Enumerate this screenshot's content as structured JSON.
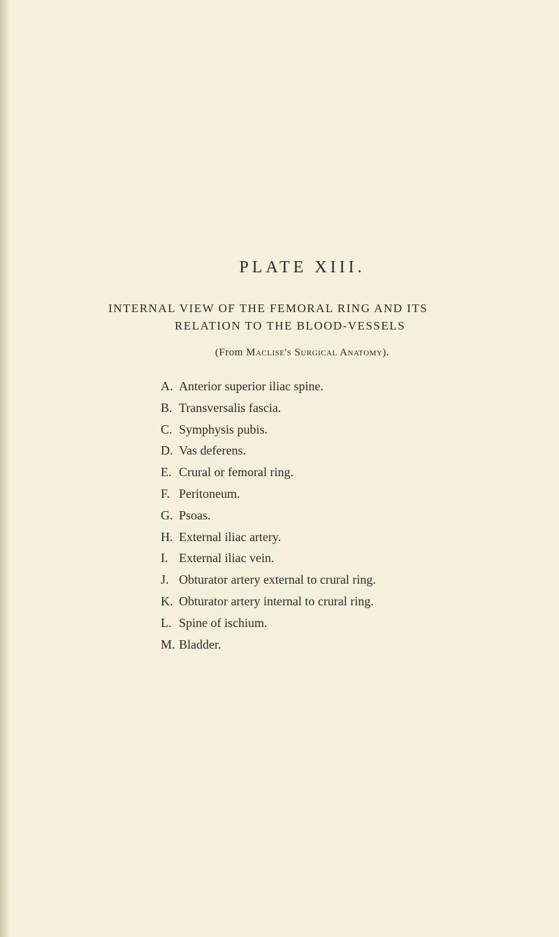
{
  "plate_title": "PLATE XIII.",
  "heading_line_1": "INTERNAL VIEW OF THE FEMORAL RING AND ITS",
  "heading_line_2": "RELATION TO THE BLOOD-VESSELS",
  "subheading_prefix": "(From ",
  "subheading_name": "Maclise's Surgical Anatomy",
  "subheading_suffix": ").",
  "items": [
    {
      "letter": "A.",
      "text": "Anterior superior iliac spine."
    },
    {
      "letter": "B.",
      "text": "Transversalis fascia."
    },
    {
      "letter": "C.",
      "text": "Symphysis pubis."
    },
    {
      "letter": "D.",
      "text": "Vas deferens."
    },
    {
      "letter": "E.",
      "text": "Crural or femoral ring."
    },
    {
      "letter": "F.",
      "text": "Peritoneum."
    },
    {
      "letter": "G.",
      "text": "Psoas."
    },
    {
      "letter": "H.",
      "text": "External iliac artery."
    },
    {
      "letter": "I.",
      "text": "External iliac vein."
    },
    {
      "letter": "J.",
      "text": "Obturator artery external to crural ring."
    },
    {
      "letter": "K.",
      "text": "Obturator artery internal to crural ring."
    },
    {
      "letter": "L.",
      "text": "Spine of ischium."
    },
    {
      "letter": "M.",
      "text": "Bladder."
    }
  ]
}
